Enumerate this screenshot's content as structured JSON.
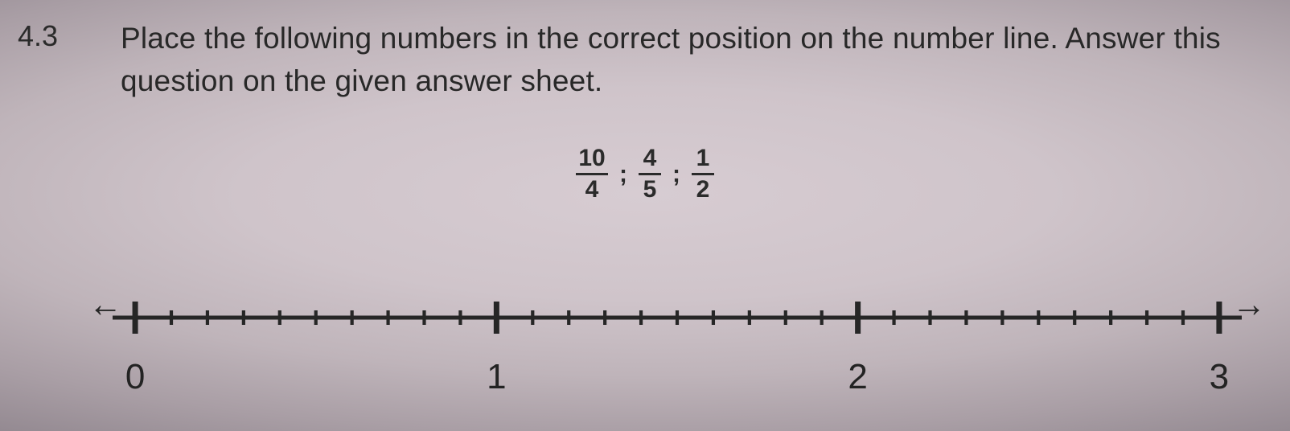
{
  "question_number": "4.3",
  "prompt_line1": "Place the following numbers in the correct position on the number line. Answer this",
  "prompt_line2": "question on the given answer sheet.",
  "fractions": {
    "f1": {
      "num": "10",
      "den": "4"
    },
    "f2": {
      "num": "4",
      "den": "5"
    },
    "f3": {
      "num": "1",
      "den": "2"
    },
    "separator": ";"
  },
  "numberline": {
    "min": 0,
    "max": 3,
    "major_ticks": [
      0,
      1,
      2,
      3
    ],
    "minor_per_unit": 10,
    "labels": [
      "0",
      "1",
      "2",
      "3"
    ],
    "line_color": "#262626",
    "line_width": 5,
    "major_tick_height": 40,
    "minor_tick_height": 18,
    "label_fontsize": 44,
    "label_color": "#232323"
  },
  "colors": {
    "text": "#282828",
    "bg_center": "#d7ccd2",
    "bg_edge": "#8f858d"
  }
}
